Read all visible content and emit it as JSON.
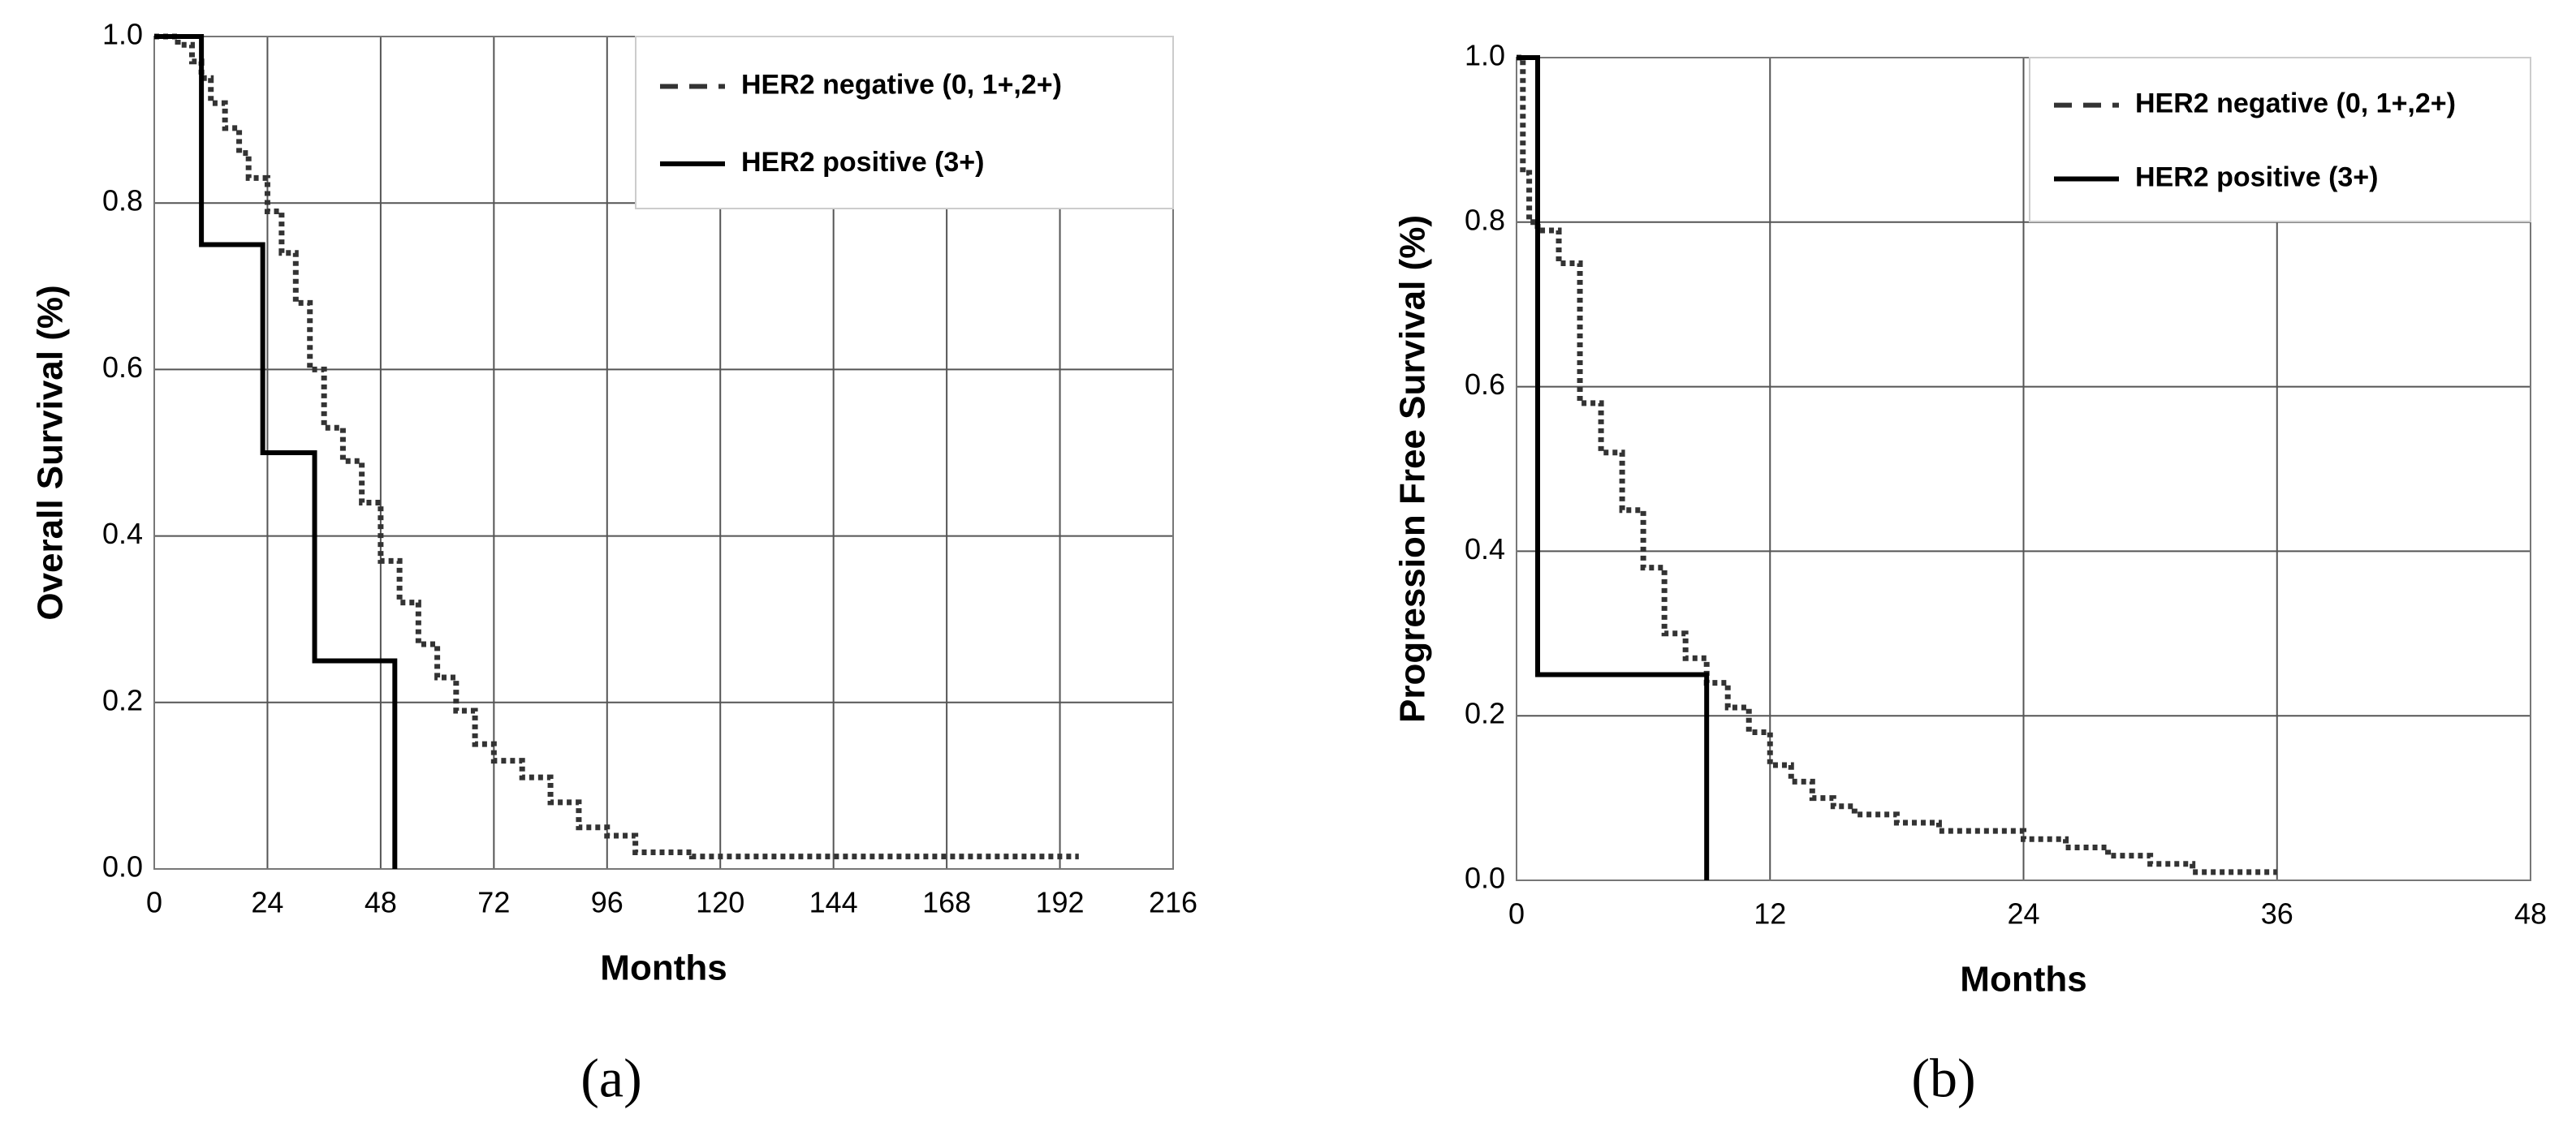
{
  "chart_data": [
    {
      "type": "step",
      "xlabel": "Months",
      "ylabel": "Overall Survival (%)",
      "caption": "(a)",
      "xlim": [
        0,
        216
      ],
      "xticks": [
        0,
        24,
        48,
        72,
        96,
        120,
        144,
        168,
        192,
        216
      ],
      "ylim": [
        0,
        1
      ],
      "yticks": [
        {
          "value": 0,
          "label": "0.0"
        },
        0.2,
        0.4,
        0.6,
        0.8,
        {
          "value": 1,
          "label": "1.0"
        }
      ],
      "grid": true,
      "legend": "top-right",
      "series": [
        {
          "name": "HER2 negative (0, 1+,2+)",
          "color": "#333333",
          "dash": "dotted",
          "x": [
            0,
            5,
            8,
            10,
            12,
            15,
            18,
            20,
            24,
            27,
            30,
            33,
            36,
            40,
            44,
            48,
            52,
            56,
            60,
            64,
            68,
            72,
            78,
            84,
            90,
            96,
            102,
            108,
            114,
            196
          ],
          "values": [
            1,
            0.99,
            0.97,
            0.95,
            0.92,
            0.89,
            0.86,
            0.83,
            0.79,
            0.74,
            0.68,
            0.6,
            0.53,
            0.49,
            0.44,
            0.37,
            0.32,
            0.27,
            0.23,
            0.19,
            0.15,
            0.13,
            0.11,
            0.08,
            0.05,
            0.04,
            0.02,
            0.02,
            0.015,
            0.015
          ]
        },
        {
          "name": "HER2 positive (3+)",
          "color": "#000000",
          "dash": "solid",
          "x": [
            0,
            10,
            23,
            34,
            51
          ],
          "values": [
            1,
            0.75,
            0.5,
            0.25,
            0
          ]
        }
      ]
    },
    {
      "type": "step",
      "xlabel": "Months",
      "ylabel": "Progression Free Survival (%)",
      "caption": "(b)",
      "xlim": [
        0,
        48
      ],
      "xticks": [
        0,
        12,
        24,
        36,
        48
      ],
      "ylim": [
        0,
        1
      ],
      "yticks": [
        {
          "value": 0,
          "label": "0.0"
        },
        0.2,
        0.4,
        0.6,
        0.8,
        {
          "value": 1,
          "label": "1.0"
        }
      ],
      "grid": true,
      "legend": "top-right",
      "series": [
        {
          "name": "HER2 negative (0, 1+,2+)",
          "color": "#333333",
          "dash": "dotted",
          "x": [
            0,
            0.3,
            0.6,
            1,
            2,
            3,
            4,
            5,
            6,
            7,
            8,
            9,
            10,
            11,
            12,
            13,
            14,
            15,
            16,
            18,
            20,
            22,
            24,
            26,
            28,
            30,
            32,
            36
          ],
          "values": [
            1,
            0.86,
            0.8,
            0.79,
            0.75,
            0.58,
            0.52,
            0.45,
            0.38,
            0.3,
            0.27,
            0.24,
            0.21,
            0.18,
            0.14,
            0.12,
            0.1,
            0.09,
            0.08,
            0.07,
            0.06,
            0.06,
            0.05,
            0.04,
            0.03,
            0.02,
            0.01,
            0.01
          ]
        },
        {
          "name": "HER2 positive (3+)",
          "color": "#000000",
          "dash": "solid",
          "x": [
            0,
            1,
            9
          ],
          "values": [
            1,
            0.25,
            0
          ]
        }
      ]
    }
  ]
}
